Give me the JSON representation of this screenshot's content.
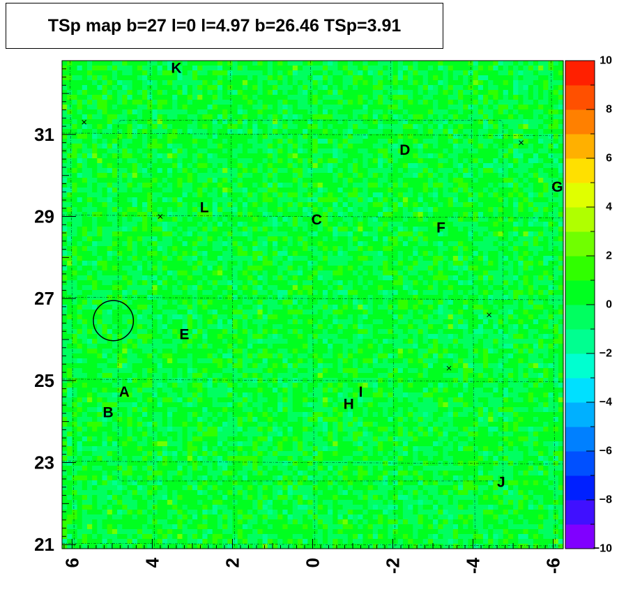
{
  "chart_data": {
    "type": "heatmap",
    "title": "TSp map b=27 l=0 l=4.97 b=26.46 TSp=3.91",
    "x_axis": {
      "range": [
        6.25,
        -6.25
      ],
      "ticks": [
        6,
        4,
        2,
        0,
        -2,
        -4,
        -6
      ],
      "tick_labels": [
        "6",
        "4",
        "2",
        "0",
        "-2",
        "-4",
        "-6"
      ],
      "reversed": true
    },
    "y_axis": {
      "range": [
        20.9,
        32.8
      ],
      "ticks": [
        21,
        23,
        25,
        27,
        29,
        31
      ],
      "tick_labels": [
        "21",
        "23",
        "25",
        "27",
        "29",
        "31"
      ]
    },
    "colorbar": {
      "range": [
        -10,
        10
      ],
      "ticks": [
        10,
        8,
        6,
        4,
        2,
        0,
        -2,
        -4,
        -6,
        -8,
        -10
      ],
      "tick_labels": [
        "10",
        "8",
        "6",
        "4",
        "2",
        "0",
        "−2",
        "−4",
        "−6",
        "−8",
        "−10"
      ],
      "colors": [
        "#8000ff",
        "#4010ff",
        "#0020ff",
        "#0050ff",
        "#0080ff",
        "#00b0ff",
        "#00e0ff",
        "#00ffd0",
        "#00ff90",
        "#00ff60",
        "#00ff20",
        "#30ff00",
        "#70ff00",
        "#b0ff00",
        "#e0ff00",
        "#ffe000",
        "#ffb000",
        "#ff8000",
        "#ff5000",
        "#ff2000"
      ]
    },
    "background_value_range": [
      -2,
      2
    ],
    "grid": true,
    "circle": {
      "l": 4.97,
      "b": 26.46,
      "radius": 0.5
    },
    "labels": [
      {
        "text": "K",
        "l": 3.4,
        "b": 32.6
      },
      {
        "text": "D",
        "l": -2.3,
        "b": 30.6
      },
      {
        "text": "G",
        "l": -6.1,
        "b": 29.7
      },
      {
        "text": "L",
        "l": 2.7,
        "b": 29.2
      },
      {
        "text": "C",
        "l": -0.1,
        "b": 28.9
      },
      {
        "text": "F",
        "l": -3.2,
        "b": 28.7
      },
      {
        "text": "E",
        "l": 3.2,
        "b": 26.1
      },
      {
        "text": "A",
        "l": 4.7,
        "b": 24.7
      },
      {
        "text": "I",
        "l": -1.2,
        "b": 24.7
      },
      {
        "text": "H",
        "l": -0.9,
        "b": 24.4
      },
      {
        "text": "B",
        "l": 5.1,
        "b": 24.2
      },
      {
        "text": "J",
        "l": -4.7,
        "b": 22.5
      }
    ],
    "cross_markers": [
      {
        "l": 5.7,
        "b": 31.3
      },
      {
        "l": 3.8,
        "b": 29.0
      },
      {
        "l": -5.2,
        "b": 30.8
      },
      {
        "l": -4.4,
        "b": 26.6
      },
      {
        "l": -3.4,
        "b": 25.3
      }
    ]
  }
}
